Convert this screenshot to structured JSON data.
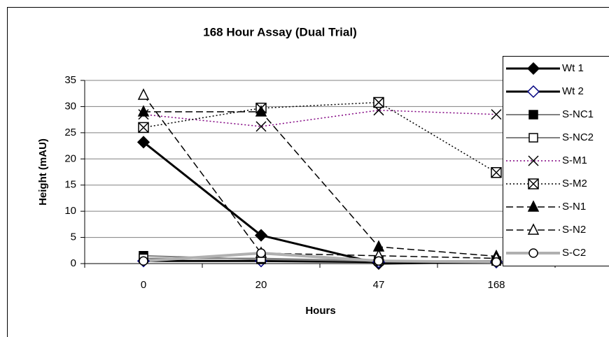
{
  "chart_data": {
    "type": "line",
    "title": "168 Hour Assay (Dual Trial)",
    "x_label": "Hours",
    "y_label": "Height (mAU)",
    "categories": [
      "0",
      "20",
      "47",
      "168"
    ],
    "ylim": [
      0,
      35
    ],
    "yticks": [
      0,
      5,
      10,
      15,
      20,
      25,
      30,
      35
    ],
    "grid": true,
    "legend": "right",
    "series": [
      {
        "name": "Wt 1",
        "color": "#000000",
        "line_width": 3,
        "dash": "solid",
        "marker": "diamond",
        "marker_color": "#000000",
        "marker_fill": "#000000",
        "values": [
          23.2,
          5.4,
          0,
          0.3
        ]
      },
      {
        "name": "Wt 2",
        "color": "#000000",
        "line_width": 3,
        "dash": "solid",
        "marker": "diamond",
        "marker_color": "#000080",
        "marker_fill": "#ffffff",
        "values": [
          0.5,
          0.5,
          0.3,
          0.3
        ]
      },
      {
        "name": "S-NC1",
        "color": "#808080",
        "line_width": 2,
        "dash": "solid",
        "marker": "square",
        "marker_color": "#000000",
        "marker_fill": "#000000",
        "values": [
          1.5,
          0.8,
          0.5,
          0.5
        ]
      },
      {
        "name": "S-NC2",
        "color": "#808080",
        "line_width": 2,
        "dash": "solid",
        "marker": "square",
        "marker_color": "#000000",
        "marker_fill": "#ffffff",
        "values": [
          1.0,
          1.0,
          0.5,
          0.5
        ]
      },
      {
        "name": "S-M1",
        "color": "#800080",
        "line_width": 1.5,
        "dash": "dotted",
        "marker": "x",
        "marker_color": "#000000",
        "marker_fill": "none",
        "values": [
          28.5,
          26.2,
          29.3,
          28.5
        ]
      },
      {
        "name": "S-M2",
        "color": "#000000",
        "line_width": 1.5,
        "dash": "dotted",
        "marker": "xbox",
        "marker_color": "#000000",
        "marker_fill": "#ffffff",
        "values": [
          26.0,
          29.7,
          30.8,
          17.4
        ]
      },
      {
        "name": "S-N1",
        "color": "#000000",
        "line_width": 1.5,
        "dash": "dashed",
        "marker": "triangle",
        "marker_color": "#000000",
        "marker_fill": "#000000",
        "values": [
          29.0,
          29.0,
          3.2,
          1.4
        ]
      },
      {
        "name": "S-N2",
        "color": "#000000",
        "line_width": 1.5,
        "dash": "dashed",
        "marker": "triangle",
        "marker_color": "#000000",
        "marker_fill": "#ffffff",
        "values": [
          32.2,
          2.0,
          1.5,
          1.0
        ]
      },
      {
        "name": "S-C2",
        "color": "#b0b0b0",
        "line_width": 4,
        "dash": "solid",
        "marker": "circle",
        "marker_color": "#000000",
        "marker_fill": "#ffffff",
        "values": [
          0.5,
          2.0,
          0.5,
          0.3
        ]
      }
    ]
  }
}
